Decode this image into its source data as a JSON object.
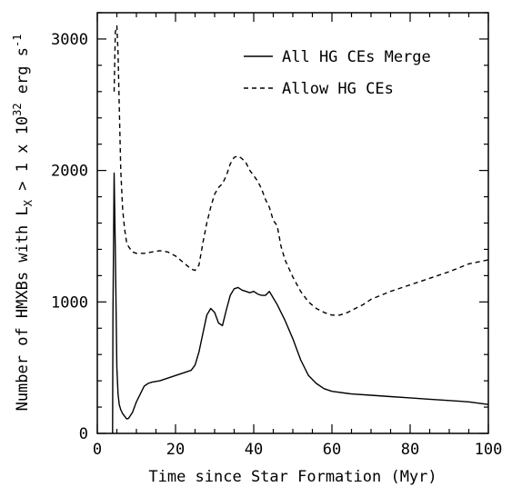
{
  "chart_data": {
    "type": "line",
    "title": "",
    "xlabel": "Time since Star Formation (Myr)",
    "ylabel": "Number of HMXBs with L",
    "ylabel_sub": "X",
    "ylabel_tail": " > 1 x 10",
    "ylabel_exp": "32",
    "ylabel_unit": " erg s",
    "ylabel_unit_exp": "-1",
    "xlim": [
      0,
      100
    ],
    "ylim": [
      0,
      3200
    ],
    "x_ticks": [
      "0",
      "20",
      "40",
      "60",
      "80",
      "100"
    ],
    "y_ticks": [
      "0",
      "1000",
      "2000",
      "3000"
    ],
    "grid": false,
    "legend_position": "top-right",
    "series": [
      {
        "name": "All HG CEs Merge",
        "style": "solid",
        "x": [
          3.9,
          4.0,
          4.3,
          4.6,
          5.0,
          5.3,
          5.6,
          6.0,
          6.5,
          7.0,
          7.5,
          8.0,
          9.0,
          10.0,
          11.0,
          12.0,
          13.0,
          14.0,
          15.0,
          16.0,
          18.0,
          20.0,
          22.0,
          24.0,
          25.0,
          26.0,
          27.0,
          28.0,
          29.0,
          30.0,
          31.0,
          32.0,
          33.0,
          34.0,
          35.0,
          36.0,
          37.0,
          38.0,
          39.0,
          40.0,
          41.0,
          42.0,
          43.0,
          44.0,
          45.0,
          46.0,
          47.0,
          48.0,
          50.0,
          52.0,
          54.0,
          56.0,
          58.0,
          60.0,
          65.0,
          70.0,
          75.0,
          80.0,
          85.0,
          90.0,
          95.0,
          100.0
        ],
        "y": [
          0,
          900,
          1980,
          1400,
          500,
          300,
          220,
          180,
          150,
          130,
          110,
          115,
          160,
          240,
          300,
          360,
          380,
          390,
          395,
          400,
          420,
          440,
          460,
          480,
          520,
          620,
          760,
          900,
          950,
          920,
          840,
          820,
          940,
          1050,
          1100,
          1110,
          1090,
          1080,
          1070,
          1080,
          1060,
          1050,
          1050,
          1080,
          1030,
          980,
          920,
          860,
          720,
          560,
          440,
          380,
          340,
          320,
          300,
          290,
          280,
          270,
          260,
          250,
          240,
          220
        ]
      },
      {
        "name": "Allow HG CEs",
        "style": "dashed",
        "x": [
          4.3,
          4.6,
          5.0,
          5.3,
          5.6,
          6.0,
          6.5,
          7.0,
          7.5,
          8.0,
          9.0,
          10.0,
          12.0,
          14.0,
          16.0,
          18.0,
          20.0,
          22.0,
          24.0,
          25.0,
          26.0,
          27.0,
          28.0,
          29.0,
          30.0,
          31.0,
          32.0,
          33.0,
          34.0,
          35.0,
          36.0,
          37.0,
          38.0,
          39.0,
          40.0,
          41.0,
          42.0,
          43.0,
          44.0,
          45.0,
          46.0,
          47.0,
          48.0,
          50.0,
          52.0,
          54.0,
          56.0,
          58.0,
          60.0,
          62.0,
          64.0,
          66.0,
          68.0,
          70.0,
          75.0,
          80.0,
          85.0,
          90.0,
          95.0,
          100.0
        ],
        "y": [
          2600,
          3050,
          3100,
          2900,
          2500,
          2000,
          1700,
          1550,
          1450,
          1420,
          1380,
          1370,
          1370,
          1380,
          1390,
          1380,
          1350,
          1300,
          1250,
          1240,
          1280,
          1450,
          1600,
          1720,
          1820,
          1870,
          1900,
          1960,
          2050,
          2100,
          2110,
          2090,
          2060,
          2000,
          1960,
          1920,
          1860,
          1780,
          1720,
          1620,
          1580,
          1420,
          1320,
          1190,
          1080,
          1000,
          950,
          920,
          900,
          900,
          920,
          950,
          980,
          1020,
          1080,
          1130,
          1180,
          1230,
          1290,
          1320
        ]
      }
    ]
  }
}
